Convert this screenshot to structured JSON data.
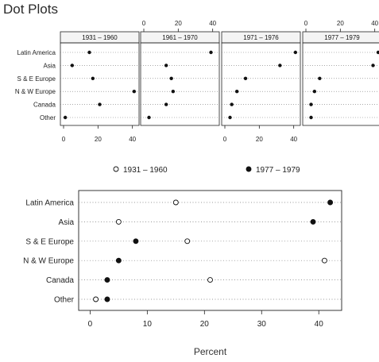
{
  "title": "Dot Plots",
  "chart_data": [
    {
      "type": "scatter",
      "subtype": "dot-plot-panels",
      "categories": [
        "Latin America",
        "Asia",
        "S & E Europe",
        "N & W Europe",
        "Canada",
        "Other"
      ],
      "xlim": [
        0,
        42
      ],
      "ticks": [
        0,
        20,
        40
      ],
      "grid": "dotted horizontal",
      "panels": [
        {
          "name": "1931 – 1960",
          "values": [
            15,
            5,
            17,
            41,
            21,
            1
          ]
        },
        {
          "name": "1961 – 1970",
          "values": [
            39,
            13,
            16,
            17,
            13,
            3
          ]
        },
        {
          "name": "1971 – 1976",
          "values": [
            41,
            32,
            12,
            7,
            4,
            3
          ]
        },
        {
          "name": "1977 – 1979",
          "values": [
            42,
            39,
            8,
            5,
            3,
            3
          ]
        }
      ]
    },
    {
      "type": "scatter",
      "subtype": "dot-plot",
      "categories": [
        "Latin America",
        "Asia",
        "S & E Europe",
        "N & W Europe",
        "Canada",
        "Other"
      ],
      "xlabel": "Percent",
      "xlim": [
        -2,
        44
      ],
      "ticks": [
        0,
        10,
        20,
        30,
        40
      ],
      "grid": "dotted horizontal",
      "legend_position": "top",
      "series": [
        {
          "name": "1931 – 1960",
          "marker": "open-circle",
          "values": [
            15,
            5,
            17,
            41,
            21,
            1
          ]
        },
        {
          "name": "1977 – 1979",
          "marker": "filled-circle",
          "values": [
            42,
            39,
            8,
            5,
            3,
            3
          ]
        }
      ]
    }
  ]
}
